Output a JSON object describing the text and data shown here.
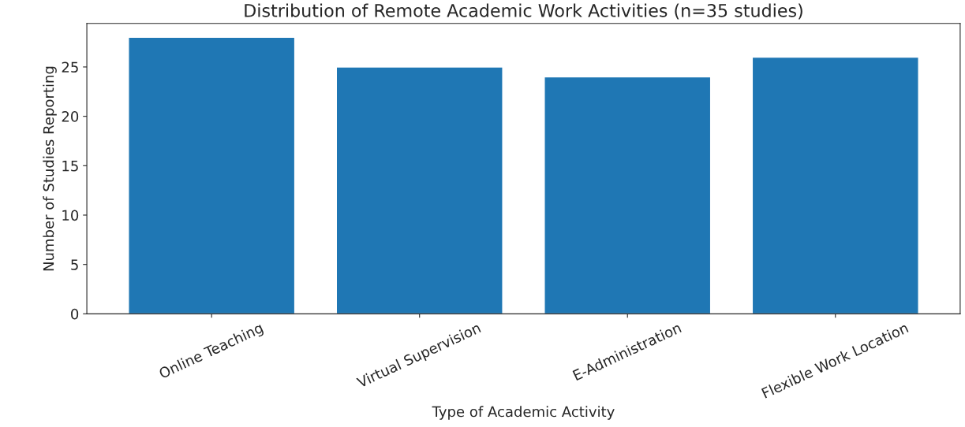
{
  "chart_data": {
    "type": "bar",
    "title": "Distribution of Remote Academic Work Activities (n=35 studies)",
    "xlabel": "Type of Academic Activity",
    "ylabel": "Number of Studies Reporting",
    "categories": [
      "Online Teaching",
      "Virtual Supervision",
      "E-Administration",
      "Flexible Work Location"
    ],
    "values": [
      28,
      25,
      24,
      26
    ],
    "color": "#1f77b4",
    "ylim": [
      0,
      29.4
    ],
    "yticks": [
      0,
      5,
      10,
      15,
      20,
      25
    ],
    "grid": false
  }
}
